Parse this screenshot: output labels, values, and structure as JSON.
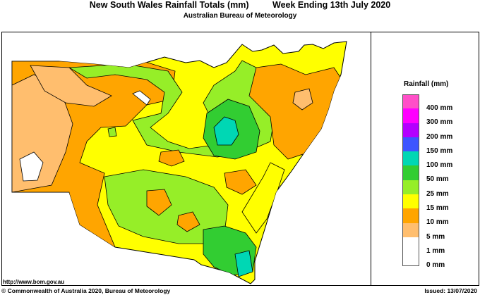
{
  "header": {
    "title": "New South Wales Rainfall Totals (mm)",
    "period": "Week Ending 13th July 2020",
    "subtitle": "Australian Bureau of Meteorology"
  },
  "legend": {
    "title": "Rainfall (mm)",
    "items": [
      {
        "label": "400 mm",
        "color": "#ff4fc8"
      },
      {
        "label": "300 mm",
        "color": "#ff00ff"
      },
      {
        "label": "200 mm",
        "color": "#b400ff"
      },
      {
        "label": "150 mm",
        "color": "#3d55ff"
      },
      {
        "label": "100 mm",
        "color": "#00d7b4"
      },
      {
        "label": "50 mm",
        "color": "#32cd32"
      },
      {
        "label": "25 mm",
        "color": "#96ee28"
      },
      {
        "label": "15 mm",
        "color": "#ffff00"
      },
      {
        "label": "10 mm",
        "color": "#ffa500"
      },
      {
        "label": "5 mm",
        "color": "#ffbe6e"
      },
      {
        "label": "1 mm",
        "color": "#ffffff"
      },
      {
        "label": "0 mm",
        "color": "#ffffff"
      }
    ]
  },
  "footer": {
    "url": "http://www.bom.gov.au",
    "copyright": "© Commonwealth of Australia 2020, Bureau of Meteorology",
    "issued": "Issued: 13/07/2020"
  }
}
